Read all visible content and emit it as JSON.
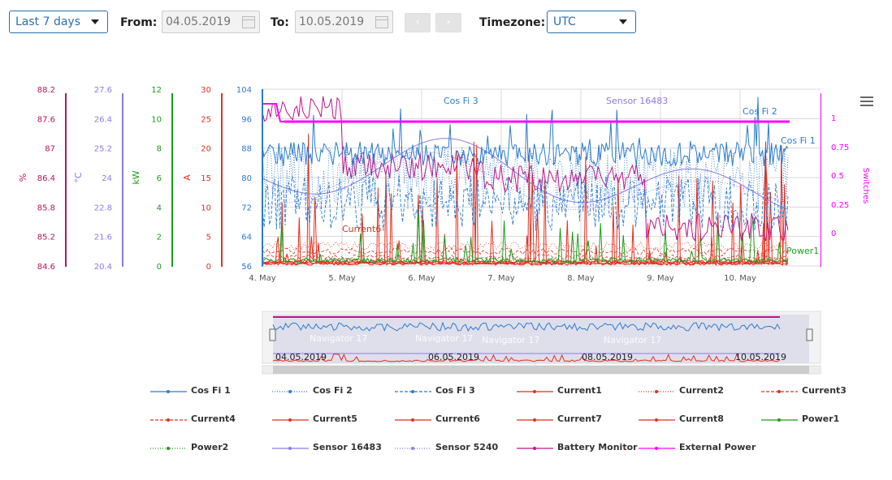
{
  "toolbar": {
    "range_value": "Last 7 days",
    "from_label": "From:",
    "from_value": "04.05.2019",
    "to_label": "To:",
    "to_value": "10.05.2019",
    "prev_label": "‹",
    "next_label": "›",
    "timezone_label": "Timezone:",
    "timezone_value": "UTC"
  },
  "colors": {
    "blue": "#2b7bd1",
    "red": "#e52f1f",
    "green": "#1a9e1a",
    "lilac": "#8b7be8",
    "magenta": "#c21487",
    "pink": "#ff00ff",
    "crimson": "#b5165e"
  },
  "chart_data": {
    "type": "line",
    "x": [
      "4. May",
      "5. May",
      "6. May",
      "7. May",
      "8. May",
      "9. May",
      "10. May"
    ],
    "xlabel": "",
    "axes": [
      {
        "id": "pct",
        "title": "%",
        "ticks": [
          "88.2",
          "87.6",
          "87",
          "86.4",
          "85.8",
          "85.2",
          "84.6"
        ],
        "color": "#b5165e"
      },
      {
        "id": "temp",
        "title": "°C",
        "ticks": [
          "27.6",
          "26.4",
          "25.2",
          "24",
          "22.8",
          "21.6",
          "20.4"
        ],
        "color": "#8b7be8"
      },
      {
        "id": "kw",
        "title": "kW",
        "ticks": [
          "12",
          "10",
          "8",
          "6",
          "4",
          "2",
          "0"
        ],
        "color": "#1a9e1a"
      },
      {
        "id": "amp",
        "title": "A",
        "ticks": [
          "30",
          "25",
          "20",
          "15",
          "10",
          "5",
          "0"
        ],
        "color": "#e52f1f"
      },
      {
        "id": "cosfi",
        "title": "",
        "ticks": [
          "104",
          "96",
          "88",
          "80",
          "72",
          "64",
          "56"
        ],
        "color": "#2b7bd1"
      },
      {
        "id": "switches",
        "title": "Switches",
        "ticks": [
          "1",
          "0.75",
          "0.5",
          "0.25",
          "0"
        ],
        "color": "#ff00ff"
      }
    ],
    "annotations": [
      "Cos Fi 3",
      "Sensor 16483",
      "Cos Fi 2",
      "Cos Fi 1",
      "Current6",
      "Power1"
    ],
    "series": [
      {
        "name": "Cos Fi 1",
        "color": "#2b7bd1",
        "style": "solid"
      },
      {
        "name": "Cos Fi 2",
        "color": "#2b7bd1",
        "style": "dotted"
      },
      {
        "name": "Cos Fi 3",
        "color": "#2b7bd1",
        "style": "dashed"
      },
      {
        "name": "Current1",
        "color": "#e52f1f",
        "style": "solid"
      },
      {
        "name": "Current2",
        "color": "#e52f1f",
        "style": "dotted"
      },
      {
        "name": "Current3",
        "color": "#e52f1f",
        "style": "dashed"
      },
      {
        "name": "Current4",
        "color": "#e52f1f",
        "style": "dashed"
      },
      {
        "name": "Current5",
        "color": "#e52f1f",
        "style": "solid"
      },
      {
        "name": "Current6",
        "color": "#e52f1f",
        "style": "solid"
      },
      {
        "name": "Current7",
        "color": "#e52f1f",
        "style": "solid"
      },
      {
        "name": "Current8",
        "color": "#e52f1f",
        "style": "solid"
      },
      {
        "name": "Power1",
        "color": "#1a9e1a",
        "style": "solid"
      },
      {
        "name": "Power2",
        "color": "#1a9e1a",
        "style": "dotted"
      },
      {
        "name": "Sensor 16483",
        "color": "#8b7be8",
        "style": "solid"
      },
      {
        "name": "Sensor 5240",
        "color": "#8b7be8",
        "style": "dotted"
      },
      {
        "name": "Battery Monitor",
        "color": "#c21487",
        "style": "solid"
      },
      {
        "name": "External Power",
        "color": "#ff00ff",
        "style": "solid"
      }
    ],
    "navigator": {
      "labels": [
        "Navigator 17",
        "Navigator 17",
        "Navigator 17",
        "Navigator 17"
      ],
      "dates": [
        "04.05.2019",
        "06.05.2019",
        "08.05.2019",
        "10.05.2019"
      ]
    }
  }
}
